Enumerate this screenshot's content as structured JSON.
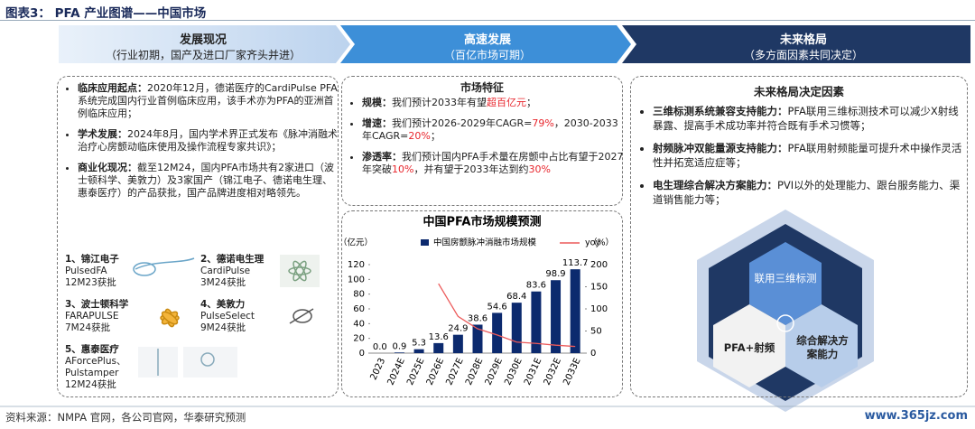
{
  "header": {
    "title": "图表3：  PFA 产业图谱——中国市场"
  },
  "stages": [
    {
      "title": "发展现况",
      "subtitle": "（行业初期，国产及进口厂家齐头并进）"
    },
    {
      "title": "高速发展",
      "subtitle": "（百亿市场可期）"
    },
    {
      "title": "未来格局",
      "subtitle": "（多方面因素共同决定）"
    }
  ],
  "left": {
    "items": [
      {
        "label": "临床应用起点：",
        "text": "2020年12月，德诺医疗的CardiPulse PFA系统完成国内行业首例临床应用，该手术亦为PFA的亚洲首例临床应用；"
      },
      {
        "label": "学术发展：",
        "text": "2024年8月，国内学术界正式发布《脉冲消融术治疗心房颤动临床使用及操作流程专家共识》；"
      },
      {
        "label": "商业化现况：",
        "text": "截至12M24，国内PFA市场共有2家进口（波士顿科学、美敦力）及3家国产（锦江电子、德诺电生理、惠泰医疗）的产品获批，国产品牌进度相对略领先。"
      }
    ],
    "products": [
      {
        "name": "1、锦江电子",
        "model": "PulsedFA",
        "approval": "12M23获批"
      },
      {
        "name": "2、德诺电生理",
        "model": "CardiPulse",
        "approval": "3M24获批"
      },
      {
        "name": "3、波士顿科学",
        "model": "FARAPULSE",
        "approval": "7M24获批"
      },
      {
        "name": "4、美敦力",
        "model": "PulseSelect",
        "approval": "9M24获批"
      },
      {
        "name": "5、惠泰医疗",
        "model": "AForcePlus、Pulstamper",
        "approval": "12M24获批"
      }
    ]
  },
  "middle": {
    "title": "市场特征",
    "items": [
      {
        "label": "规模：",
        "parts": [
          {
            "text": "我们预计2033年有望"
          },
          {
            "text": "超百亿元",
            "color": "#e8262d"
          },
          {
            "text": "；"
          }
        ]
      },
      {
        "label": "增速：",
        "parts": [
          {
            "text": "我们预计2026-2029年CAGR="
          },
          {
            "text": "79%",
            "color": "#e8262d"
          },
          {
            "text": "，2030-2033年CAGR="
          },
          {
            "text": "20%",
            "color": "#e8262d"
          },
          {
            "text": "；"
          }
        ]
      },
      {
        "label": "渗透率：",
        "parts": [
          {
            "text": "我们预计国内PFA手术量在房颤中占比有望于2027年突破"
          },
          {
            "text": "10%",
            "color": "#e8262d"
          },
          {
            "text": "，并有望于2033年达到约"
          },
          {
            "text": "30%",
            "color": "#e8262d"
          }
        ]
      }
    ]
  },
  "chart_data": {
    "type": "bar_line",
    "title": "中国PFA市场规模预测",
    "y_label": "（亿元）",
    "y2_label": "（%）",
    "categories": [
      "2023",
      "2024E",
      "2025E",
      "2026E",
      "2027E",
      "2028E",
      "2029E",
      "2030E",
      "2031E",
      "2032E",
      "2033E"
    ],
    "series": [
      {
        "name": "中国房颤脉冲消融市场规模",
        "type": "bar",
        "color": "#0c2a6e",
        "values": [
          0.0,
          0.9,
          5.3,
          13.6,
          24.9,
          38.6,
          54.6,
          68.4,
          83.6,
          98.9,
          113.7
        ],
        "value_labels": [
          "0.0",
          "0.9",
          "5.3",
          "13.6",
          "24.9",
          "38.6",
          "54.6",
          "68.4",
          "83.6",
          "98.9",
          "113.7"
        ]
      },
      {
        "name": "yoy",
        "type": "line",
        "axis": "y2",
        "color": "#ec5a5a",
        "values": [
          null,
          null,
          null,
          157,
          83,
          55,
          41,
          25,
          22,
          18,
          15
        ]
      }
    ],
    "ylim": [
      0,
      120
    ],
    "yticks": [
      0,
      20,
      40,
      60,
      80,
      100,
      120
    ],
    "y2lim": [
      0,
      200
    ],
    "y2ticks": [
      0,
      50,
      100,
      150,
      200
    ]
  },
  "right": {
    "title": "未来格局决定因素",
    "items": [
      {
        "label": "三维标测系统兼容支持能力：",
        "text": "PFA联用三维标测技术可以减少X射线暴露、提高手术成功率并符合既有手术习惯等；"
      },
      {
        "label": "射频脉冲双能量源支持能力：",
        "text": "PFA联用射频能量可提升术中操作灵活性并拓宽适应症等；"
      },
      {
        "label": "电生理综合解决方案能力：",
        "text": "PVI以外的处理能力、跟台服务能力、渠道销售能力等；"
      }
    ],
    "diagram": {
      "top": "联用三维标测",
      "left": "PFA+射频",
      "right": "综合解决方案能力"
    }
  },
  "footer": {
    "source": "资料来源：NMPA 官网，各公司官网，华泰研究预测",
    "watermark": "www.365jz.com"
  }
}
